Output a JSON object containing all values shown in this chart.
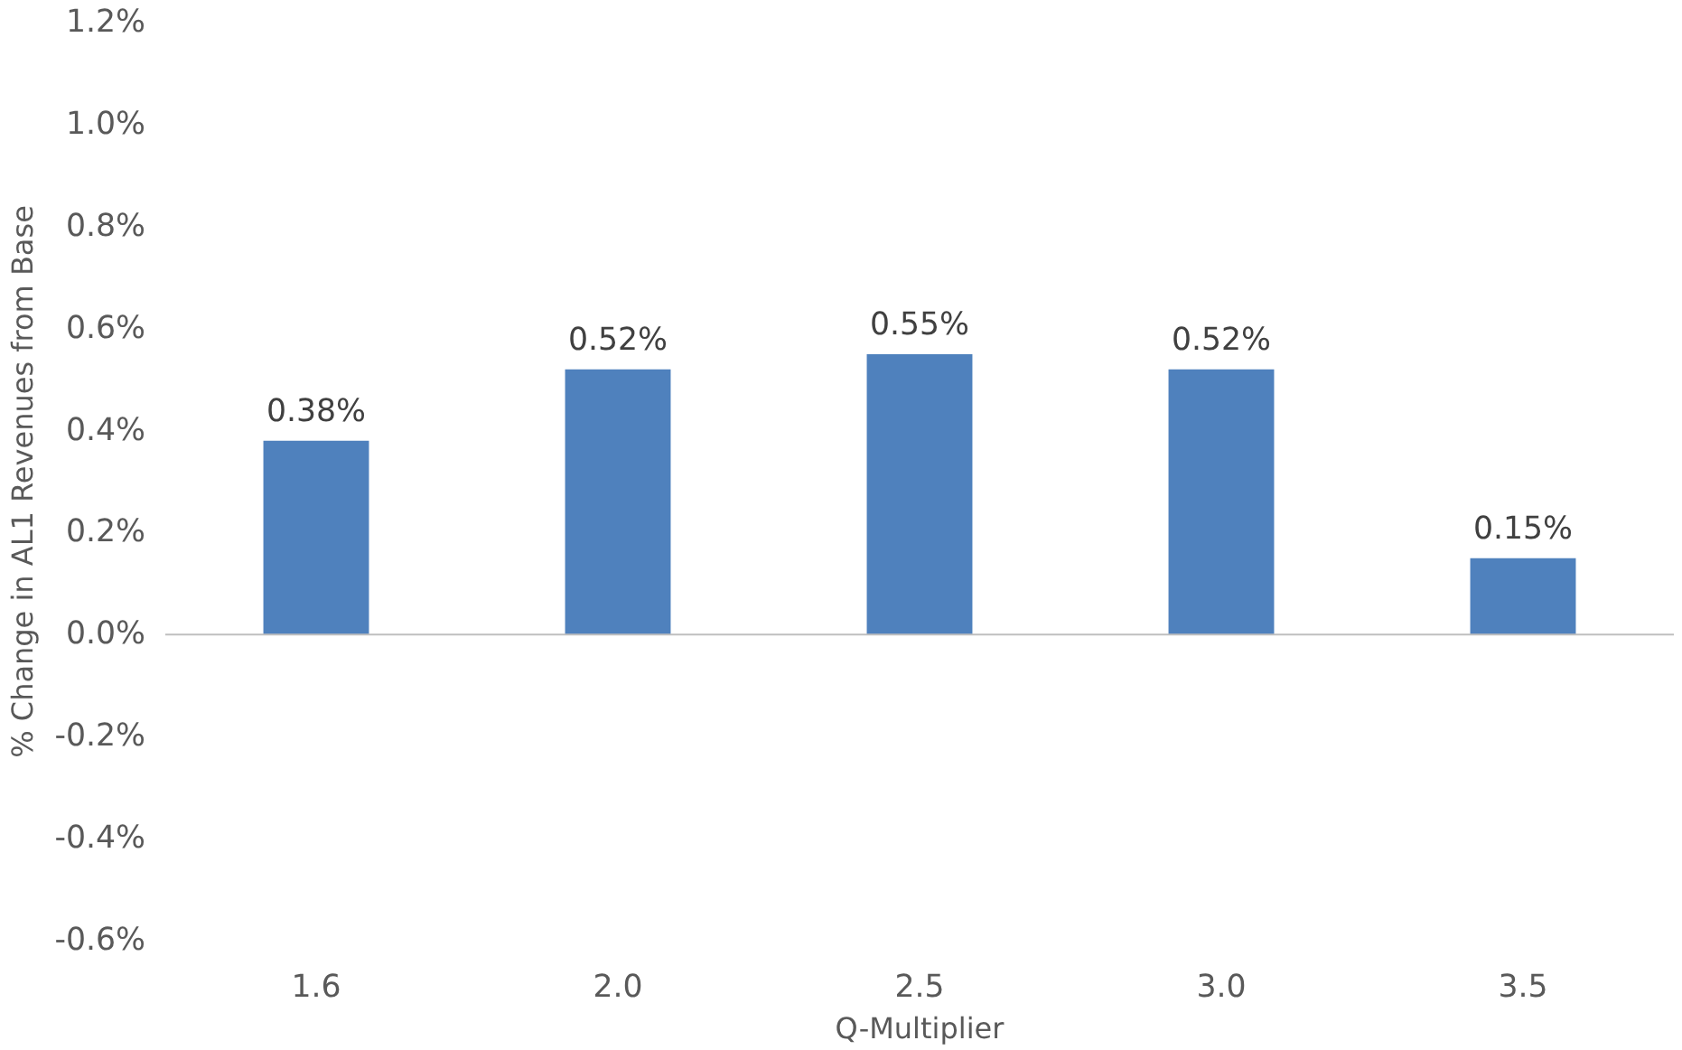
{
  "chart_data": {
    "type": "bar",
    "xlabel": "Q-Multiplier",
    "ylabel": "% Change in AL1 Revenues from Base",
    "categories": [
      "1.6",
      "2.0",
      "2.5",
      "3.0",
      "3.5"
    ],
    "values": [
      0.38,
      0.52,
      0.55,
      0.52,
      0.15
    ],
    "value_labels": [
      "0.38%",
      "0.52%",
      "0.55%",
      "0.52%",
      "0.15%"
    ],
    "color": "#4f81bd",
    "ylim": [
      -0.6,
      1.2
    ],
    "yticks": [
      {
        "value": -0.6,
        "label": "-0.6%"
      },
      {
        "value": -0.4,
        "label": "-0.4%"
      },
      {
        "value": -0.2,
        "label": "-0.2%"
      },
      {
        "value": 0,
        "label": "0.0%"
      },
      {
        "value": 0.2,
        "label": "0.2%"
      },
      {
        "value": 0.4,
        "label": "0.4%"
      },
      {
        "value": 0.6,
        "label": "0.6%"
      },
      {
        "value": 0.8,
        "label": "0.8%"
      },
      {
        "value": 1.0,
        "label": "1.0%"
      },
      {
        "value": 1.2,
        "label": "1.2%"
      }
    ],
    "relative": false
  }
}
